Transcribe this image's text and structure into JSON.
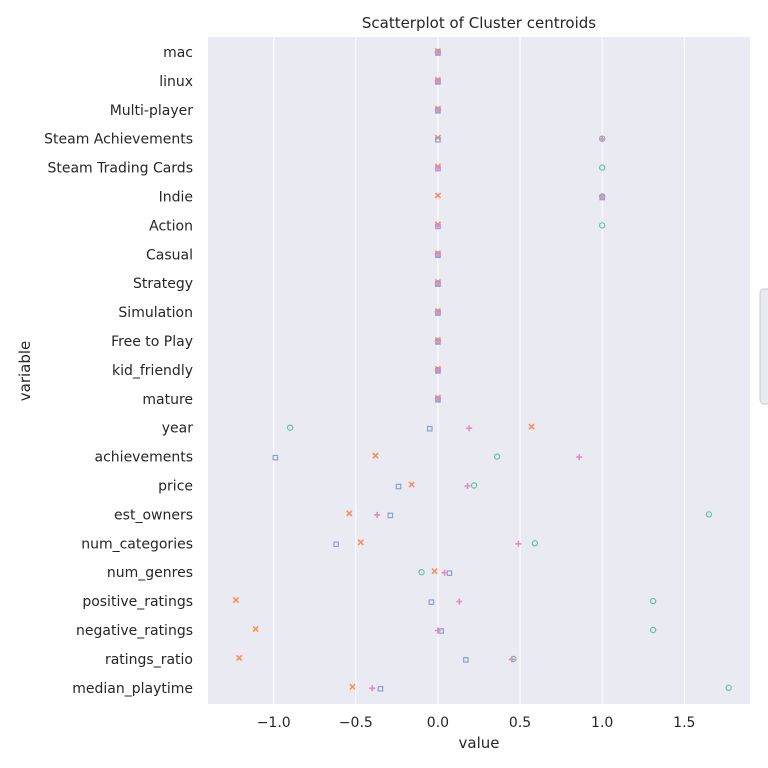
{
  "chart_data": {
    "type": "scatter",
    "title": "Scatterplot of Cluster centroids",
    "xlabel": "value",
    "ylabel": "variable",
    "xlim": [
      -1.4,
      1.9
    ],
    "xticks": [
      -1.0,
      -0.5,
      0.0,
      0.5,
      1.0,
      1.5
    ],
    "xtick_labels": [
      "−1.0",
      "−0.5",
      "0.0",
      "0.5",
      "1.0",
      "1.5"
    ],
    "grid": true,
    "legend": "right",
    "categories": [
      "mac",
      "linux",
      "Multi-player",
      "Steam Achievements",
      "Steam Trading Cards",
      "Indie",
      "Action",
      "Casual",
      "Strategy",
      "Simulation",
      "Free to Play",
      "kid_friendly",
      "mature",
      "year",
      "achievements",
      "price",
      "est_owners",
      "num_categories",
      "num_genres",
      "positive_ratings",
      "negative_ratings",
      "ratings_ratio",
      "median_playtime"
    ],
    "series": [
      {
        "color": "#66c2a5",
        "marker": "circle",
        "values": [
          0.0,
          0.0,
          0.0,
          1.0,
          1.0,
          1.0,
          1.0,
          0.0,
          0.0,
          0.0,
          0.0,
          0.0,
          0.0,
          -0.9,
          0.36,
          0.22,
          1.65,
          0.59,
          -0.1,
          1.31,
          1.31,
          0.46,
          1.77
        ]
      },
      {
        "color": "#fc8d62",
        "marker": "x",
        "values": [
          0.0,
          0.0,
          0.0,
          0.0,
          0.0,
          0.0,
          0.0,
          0.0,
          0.0,
          0.0,
          0.0,
          0.0,
          0.0,
          0.57,
          -0.38,
          -0.16,
          -0.54,
          -0.47,
          -0.02,
          -1.23,
          -1.11,
          -1.21,
          -0.52
        ]
      },
      {
        "color": "#8da0cb",
        "marker": "square",
        "values": [
          0.0,
          0.0,
          0.0,
          0.0,
          0.0,
          1.0,
          0.0,
          0.0,
          0.0,
          0.0,
          0.0,
          0.0,
          0.0,
          -0.05,
          -0.99,
          -0.24,
          -0.29,
          -0.62,
          0.07,
          -0.04,
          0.02,
          0.17,
          -0.35
        ]
      },
      {
        "color": "#e78ac3",
        "marker": "plus",
        "values": [
          0.0,
          0.0,
          0.0,
          1.0,
          0.0,
          1.0,
          0.0,
          0.0,
          0.0,
          0.0,
          0.0,
          0.0,
          0.0,
          0.19,
          0.86,
          0.18,
          -0.37,
          0.49,
          0.04,
          0.13,
          0.0,
          0.45,
          -0.4
        ]
      }
    ]
  }
}
